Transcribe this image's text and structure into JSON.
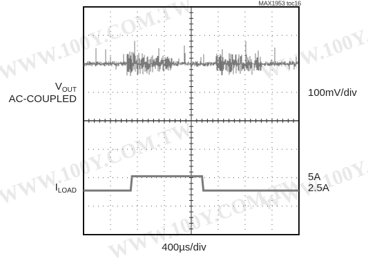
{
  "figure_id": "MAX1953 toc16",
  "watermark": "WWW.100Y.COM.TW",
  "chart_data": {
    "type": "line",
    "title": "",
    "xlabel": "400µs/div",
    "ylabel": "",
    "grid": true,
    "divisions": {
      "x": 8,
      "y": 8
    },
    "xlim": [
      0,
      3200
    ],
    "x_unit": "µs",
    "channels": [
      {
        "name": "VOUT AC-COUPLED",
        "label_main": "V",
        "label_sub": "OUT",
        "label_line2": "AC-COUPLED",
        "scale": "100mV/div",
        "color": "#7a7a7a",
        "baseline_div": 6.0,
        "noise_events_us": [
          700,
          2040
        ]
      },
      {
        "name": "ILOAD",
        "label_main": "I",
        "label_sub": "LOAD",
        "color": "#7a7a7a",
        "levels_label_high": "5A",
        "levels_label_low": "2.5A",
        "x": [
          0,
          700,
          720,
          1760,
          1780,
          3200
        ],
        "y": [
          2.5,
          2.5,
          5,
          5,
          2.5,
          2.5
        ]
      }
    ]
  }
}
